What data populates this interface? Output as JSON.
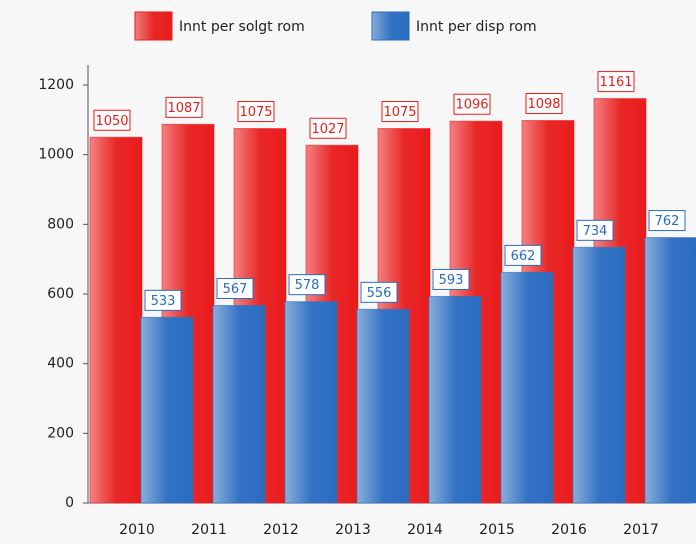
{
  "chart_data": {
    "type": "bar",
    "categories": [
      "2010",
      "2011",
      "2012",
      "2013",
      "2014",
      "2015",
      "2016",
      "2017"
    ],
    "series": [
      {
        "name": "Innt per solgt rom",
        "color": "#e81c1c",
        "values": [
          1050,
          1087,
          1075,
          1027,
          1075,
          1096,
          1098,
          1161
        ]
      },
      {
        "name": "Innt per disp rom",
        "color": "#2a6cc0",
        "values": [
          533,
          567,
          578,
          556,
          593,
          662,
          734,
          762
        ]
      }
    ],
    "ylim": [
      0,
      1200
    ],
    "yticks": [
      0,
      200,
      400,
      600,
      800,
      1000,
      1200
    ],
    "grid": false,
    "legend": "top"
  }
}
